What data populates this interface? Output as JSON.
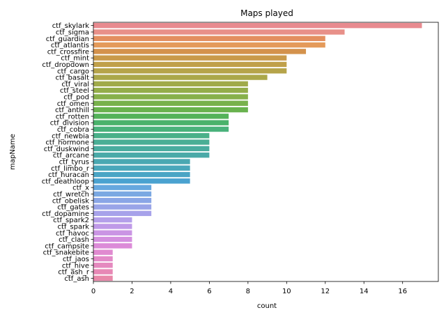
{
  "chart_data": {
    "type": "bar",
    "orientation": "horizontal",
    "title": "Maps played",
    "xlabel": "count",
    "ylabel": "mapName",
    "xlim": [
      0,
      17.85
    ],
    "xticks": [
      0,
      2,
      4,
      6,
      8,
      10,
      12,
      14,
      16
    ],
    "grid": false,
    "categories": [
      "ctf_skylark",
      "ctf_sigma",
      "ctf_guardian",
      "ctf_atlantis",
      "ctf_crossfire",
      "ctf_mint",
      "ctf_dropdown",
      "ctf_cargo",
      "ctf_basalt",
      "ctf_viral",
      "ctf_steel",
      "ctf_pod",
      "ctf_omen",
      "ctf_anthill",
      "ctf_rotten",
      "ctf_division",
      "ctf_cobra",
      "ctf_newbia",
      "ctf_hormone",
      "ctf_duskwind",
      "ctf_arcane",
      "ctf_tyrus",
      "ctf_limbo_r",
      "ctf_huracan",
      "ctf_deathloop",
      "ctf_x",
      "ctf_wretch",
      "ctf_obelisk",
      "ctf_gates",
      "ctf_dopamine",
      "ctf_spark2",
      "ctf_spark",
      "ctf_havoc",
      "ctf_clash",
      "ctf_campsite",
      "ctf_snakebite",
      "ctf_jaos",
      "ctf_hive",
      "ctf_ash_r",
      "ctf_ash"
    ],
    "values": [
      17,
      13,
      12,
      12,
      11,
      10,
      10,
      10,
      9,
      8,
      8,
      8,
      8,
      8,
      7,
      7,
      7,
      6,
      6,
      6,
      6,
      5,
      5,
      5,
      5,
      3,
      3,
      3,
      3,
      3,
      2,
      2,
      2,
      2,
      2,
      1,
      1,
      1,
      1,
      1
    ],
    "colors": [
      "#e88a8f",
      "#e89089",
      "#e38f5f",
      "#e49a5a",
      "#d4924c",
      "#c99a4a",
      "#c0a04a",
      "#b6a44a",
      "#aba84a",
      "#a0aa4a",
      "#94ad4a",
      "#87b04a",
      "#78b14c",
      "#69b24e",
      "#54b259",
      "#4ab26b",
      "#4ab27b",
      "#4ab089",
      "#4aae95",
      "#4aac9f",
      "#4aaaa8",
      "#4aa8b2",
      "#4aa7bb",
      "#4aa5c5",
      "#4aa2d0",
      "#67a8df",
      "#7aa8e2",
      "#8aa6e6",
      "#99a4e8",
      "#a7a2ea",
      "#b49fea",
      "#bf9ae8",
      "#ca95e4",
      "#d490df",
      "#dc8bd8",
      "#e08ad0",
      "#e38ac8",
      "#e589bf",
      "#e788b5",
      "#e888a9"
    ]
  }
}
